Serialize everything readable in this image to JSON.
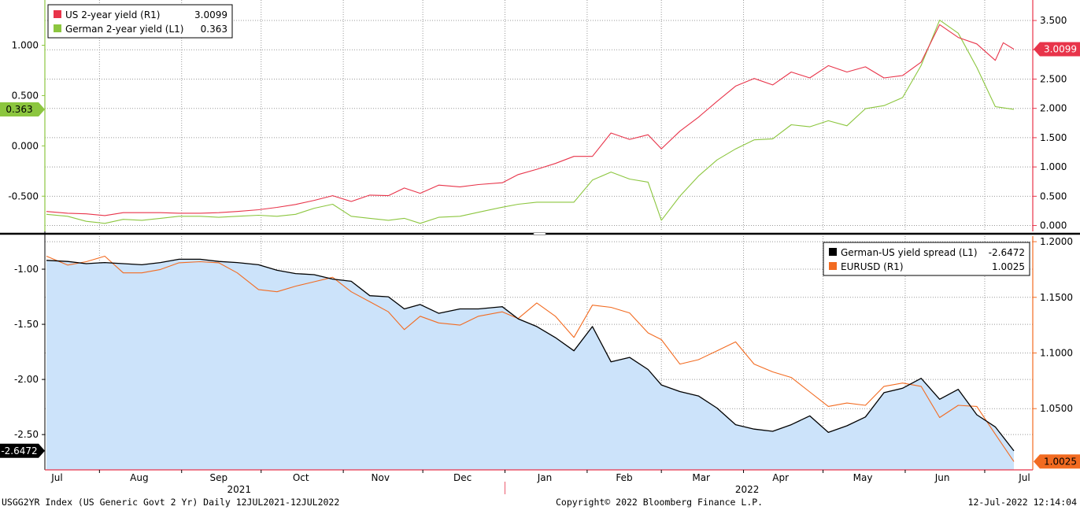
{
  "chart_data": [
    {
      "type": "line",
      "panel": "top",
      "x_axis": {
        "months": [
          "Jul",
          "Aug",
          "Sep",
          "Oct",
          "Nov",
          "Dec",
          "Jan",
          "Feb",
          "Mar",
          "Apr",
          "May",
          "Jun",
          "Jul"
        ],
        "years": [
          "2021",
          "2022"
        ],
        "range": [
          "2021-07-12",
          "2022-07-12"
        ]
      },
      "left_axis": {
        "ticks": [
          "1.000",
          "0.500",
          "0.000",
          "-0.500"
        ],
        "ylim": [
          -0.85,
          1.45
        ]
      },
      "right_axis": {
        "ticks": [
          "3.500",
          "3.000",
          "2.500",
          "2.000",
          "1.500",
          "1.000",
          "0.500",
          "0.000"
        ],
        "ylim": [
          -0.1,
          3.85
        ]
      },
      "legend_position": "top-left",
      "series": [
        {
          "name": "US 2-year yield (R1)",
          "last_value": "3.0099",
          "axis": "right",
          "color": "#e8344a",
          "points": [
            [
              "2021-07-12",
              0.24
            ],
            [
              "2021-07-20",
              0.21
            ],
            [
              "2021-07-27",
              0.2
            ],
            [
              "2021-08-03",
              0.17
            ],
            [
              "2021-08-10",
              0.22
            ],
            [
              "2021-08-17",
              0.22
            ],
            [
              "2021-08-24",
              0.22
            ],
            [
              "2021-08-31",
              0.21
            ],
            [
              "2021-09-08",
              0.21
            ],
            [
              "2021-09-15",
              0.22
            ],
            [
              "2021-09-22",
              0.24
            ],
            [
              "2021-09-30",
              0.27
            ],
            [
              "2021-10-07",
              0.31
            ],
            [
              "2021-10-14",
              0.36
            ],
            [
              "2021-10-21",
              0.43
            ],
            [
              "2021-10-28",
              0.51
            ],
            [
              "2021-11-04",
              0.41
            ],
            [
              "2021-11-11",
              0.52
            ],
            [
              "2021-11-18",
              0.51
            ],
            [
              "2021-11-24",
              0.64
            ],
            [
              "2021-11-30",
              0.55
            ],
            [
              "2021-12-07",
              0.69
            ],
            [
              "2021-12-15",
              0.66
            ],
            [
              "2021-12-22",
              0.7
            ],
            [
              "2021-12-31",
              0.73
            ],
            [
              "2022-01-06",
              0.87
            ],
            [
              "2022-01-13",
              0.96
            ],
            [
              "2022-01-20",
              1.06
            ],
            [
              "2022-01-27",
              1.18
            ],
            [
              "2022-02-03",
              1.18
            ],
            [
              "2022-02-10",
              1.58
            ],
            [
              "2022-02-17",
              1.47
            ],
            [
              "2022-02-24",
              1.55
            ],
            [
              "2022-03-01",
              1.31
            ],
            [
              "2022-03-08",
              1.61
            ],
            [
              "2022-03-15",
              1.85
            ],
            [
              "2022-03-22",
              2.12
            ],
            [
              "2022-03-29",
              2.38
            ],
            [
              "2022-04-05",
              2.51
            ],
            [
              "2022-04-12",
              2.4
            ],
            [
              "2022-04-19",
              2.62
            ],
            [
              "2022-04-26",
              2.52
            ],
            [
              "2022-05-03",
              2.73
            ],
            [
              "2022-05-10",
              2.62
            ],
            [
              "2022-05-17",
              2.71
            ],
            [
              "2022-05-24",
              2.52
            ],
            [
              "2022-05-31",
              2.56
            ],
            [
              "2022-06-07",
              2.79
            ],
            [
              "2022-06-14",
              3.43
            ],
            [
              "2022-06-21",
              3.21
            ],
            [
              "2022-06-28",
              3.1
            ],
            [
              "2022-07-05",
              2.82
            ],
            [
              "2022-07-08",
              3.12
            ],
            [
              "2022-07-12",
              3.0099
            ]
          ]
        },
        {
          "name": "German 2-year yield (L1)",
          "last_value": "0.363",
          "axis": "left",
          "color": "#8cc63f",
          "points": [
            [
              "2021-07-12",
              -0.68
            ],
            [
              "2021-07-20",
              -0.7
            ],
            [
              "2021-07-27",
              -0.75
            ],
            [
              "2021-08-03",
              -0.77
            ],
            [
              "2021-08-10",
              -0.73
            ],
            [
              "2021-08-17",
              -0.74
            ],
            [
              "2021-08-24",
              -0.72
            ],
            [
              "2021-08-31",
              -0.7
            ],
            [
              "2021-09-08",
              -0.7
            ],
            [
              "2021-09-15",
              -0.71
            ],
            [
              "2021-09-22",
              -0.7
            ],
            [
              "2021-09-30",
              -0.69
            ],
            [
              "2021-10-07",
              -0.7
            ],
            [
              "2021-10-14",
              -0.68
            ],
            [
              "2021-10-21",
              -0.62
            ],
            [
              "2021-10-28",
              -0.58
            ],
            [
              "2021-11-04",
              -0.7
            ],
            [
              "2021-11-11",
              -0.72
            ],
            [
              "2021-11-18",
              -0.74
            ],
            [
              "2021-11-24",
              -0.72
            ],
            [
              "2021-11-30",
              -0.77
            ],
            [
              "2021-12-07",
              -0.71
            ],
            [
              "2021-12-15",
              -0.7
            ],
            [
              "2021-12-22",
              -0.66
            ],
            [
              "2021-12-31",
              -0.61
            ],
            [
              "2022-01-06",
              -0.58
            ],
            [
              "2022-01-13",
              -0.56
            ],
            [
              "2022-01-20",
              -0.56
            ],
            [
              "2022-01-27",
              -0.56
            ],
            [
              "2022-02-03",
              -0.34
            ],
            [
              "2022-02-10",
              -0.26
            ],
            [
              "2022-02-17",
              -0.33
            ],
            [
              "2022-02-24",
              -0.36
            ],
            [
              "2022-03-01",
              -0.74
            ],
            [
              "2022-03-08",
              -0.5
            ],
            [
              "2022-03-15",
              -0.3
            ],
            [
              "2022-03-22",
              -0.14
            ],
            [
              "2022-03-29",
              -0.03
            ],
            [
              "2022-04-05",
              0.06
            ],
            [
              "2022-04-12",
              0.07
            ],
            [
              "2022-04-19",
              0.21
            ],
            [
              "2022-04-26",
              0.19
            ],
            [
              "2022-05-03",
              0.25
            ],
            [
              "2022-05-10",
              0.2
            ],
            [
              "2022-05-17",
              0.37
            ],
            [
              "2022-05-24",
              0.4
            ],
            [
              "2022-05-31",
              0.48
            ],
            [
              "2022-06-07",
              0.8
            ],
            [
              "2022-06-14",
              1.25
            ],
            [
              "2022-06-21",
              1.12
            ],
            [
              "2022-06-28",
              0.78
            ],
            [
              "2022-07-05",
              0.39
            ],
            [
              "2022-07-12",
              0.363
            ]
          ]
        }
      ]
    },
    {
      "type": "area",
      "panel": "bottom",
      "left_axis": {
        "ticks": [
          "-1.00",
          "-1.50",
          "-2.00",
          "-2.50"
        ],
        "ylim": [
          -2.82,
          -0.7
        ]
      },
      "right_axis": {
        "ticks": [
          "1.2000",
          "1.1500",
          "1.1000",
          "1.0500"
        ],
        "ylim": [
          0.995,
          1.205
        ]
      },
      "legend_position": "top-right",
      "series": [
        {
          "name": "German-US yield spread (L1)",
          "last_value": "-2.6472",
          "axis": "left",
          "color": "#000000",
          "fill": "#cce3fa",
          "points": [
            [
              "2021-07-12",
              -0.92
            ],
            [
              "2021-07-20",
              -0.93
            ],
            [
              "2021-07-27",
              -0.95
            ],
            [
              "2021-08-03",
              -0.94
            ],
            [
              "2021-08-10",
              -0.95
            ],
            [
              "2021-08-17",
              -0.96
            ],
            [
              "2021-08-24",
              -0.94
            ],
            [
              "2021-08-31",
              -0.91
            ],
            [
              "2021-09-08",
              -0.91
            ],
            [
              "2021-09-15",
              -0.93
            ],
            [
              "2021-09-22",
              -0.94
            ],
            [
              "2021-09-30",
              -0.96
            ],
            [
              "2021-10-07",
              -1.01
            ],
            [
              "2021-10-14",
              -1.04
            ],
            [
              "2021-10-21",
              -1.05
            ],
            [
              "2021-10-28",
              -1.09
            ],
            [
              "2021-11-04",
              -1.11
            ],
            [
              "2021-11-11",
              -1.24
            ],
            [
              "2021-11-18",
              -1.25
            ],
            [
              "2021-11-24",
              -1.36
            ],
            [
              "2021-11-30",
              -1.32
            ],
            [
              "2021-12-07",
              -1.4
            ],
            [
              "2021-12-15",
              -1.36
            ],
            [
              "2021-12-22",
              -1.36
            ],
            [
              "2021-12-31",
              -1.34
            ],
            [
              "2022-01-06",
              -1.45
            ],
            [
              "2022-01-13",
              -1.52
            ],
            [
              "2022-01-20",
              -1.62
            ],
            [
              "2022-01-27",
              -1.74
            ],
            [
              "2022-02-03",
              -1.52
            ],
            [
              "2022-02-10",
              -1.84
            ],
            [
              "2022-02-17",
              -1.8
            ],
            [
              "2022-02-24",
              -1.91
            ],
            [
              "2022-03-01",
              -2.05
            ],
            [
              "2022-03-08",
              -2.11
            ],
            [
              "2022-03-15",
              -2.15
            ],
            [
              "2022-03-22",
              -2.26
            ],
            [
              "2022-03-29",
              -2.41
            ],
            [
              "2022-04-05",
              -2.45
            ],
            [
              "2022-04-12",
              -2.47
            ],
            [
              "2022-04-19",
              -2.41
            ],
            [
              "2022-04-26",
              -2.33
            ],
            [
              "2022-05-03",
              -2.48
            ],
            [
              "2022-05-10",
              -2.42
            ],
            [
              "2022-05-17",
              -2.34
            ],
            [
              "2022-05-24",
              -2.12
            ],
            [
              "2022-05-31",
              -2.08
            ],
            [
              "2022-06-07",
              -1.99
            ],
            [
              "2022-06-14",
              -2.18
            ],
            [
              "2022-06-21",
              -2.09
            ],
            [
              "2022-06-28",
              -2.32
            ],
            [
              "2022-07-05",
              -2.43
            ],
            [
              "2022-07-12",
              -2.6472
            ]
          ]
        },
        {
          "name": "EURUSD (R1)",
          "last_value": "1.0025",
          "axis": "right",
          "color": "#f26b21",
          "points": [
            [
              "2021-07-12",
              1.187
            ],
            [
              "2021-07-20",
              1.179
            ],
            [
              "2021-07-27",
              1.182
            ],
            [
              "2021-08-03",
              1.187
            ],
            [
              "2021-08-10",
              1.172
            ],
            [
              "2021-08-17",
              1.172
            ],
            [
              "2021-08-24",
              1.175
            ],
            [
              "2021-08-31",
              1.181
            ],
            [
              "2021-09-08",
              1.182
            ],
            [
              "2021-09-15",
              1.181
            ],
            [
              "2021-09-22",
              1.172
            ],
            [
              "2021-09-30",
              1.157
            ],
            [
              "2021-10-07",
              1.155
            ],
            [
              "2021-10-14",
              1.16
            ],
            [
              "2021-10-21",
              1.164
            ],
            [
              "2021-10-28",
              1.168
            ],
            [
              "2021-11-04",
              1.155
            ],
            [
              "2021-11-11",
              1.146
            ],
            [
              "2021-11-18",
              1.137
            ],
            [
              "2021-11-24",
              1.121
            ],
            [
              "2021-11-30",
              1.133
            ],
            [
              "2021-12-07",
              1.127
            ],
            [
              "2021-12-15",
              1.125
            ],
            [
              "2021-12-22",
              1.133
            ],
            [
              "2021-12-31",
              1.137
            ],
            [
              "2022-01-06",
              1.131
            ],
            [
              "2022-01-13",
              1.145
            ],
            [
              "2022-01-20",
              1.133
            ],
            [
              "2022-01-27",
              1.114
            ],
            [
              "2022-02-03",
              1.143
            ],
            [
              "2022-02-10",
              1.141
            ],
            [
              "2022-02-17",
              1.136
            ],
            [
              "2022-02-24",
              1.118
            ],
            [
              "2022-03-01",
              1.112
            ],
            [
              "2022-03-08",
              1.09
            ],
            [
              "2022-03-15",
              1.094
            ],
            [
              "2022-03-22",
              1.102
            ],
            [
              "2022-03-29",
              1.11
            ],
            [
              "2022-04-05",
              1.09
            ],
            [
              "2022-04-12",
              1.083
            ],
            [
              "2022-04-19",
              1.078
            ],
            [
              "2022-04-26",
              1.065
            ],
            [
              "2022-05-03",
              1.052
            ],
            [
              "2022-05-10",
              1.055
            ],
            [
              "2022-05-17",
              1.053
            ],
            [
              "2022-05-24",
              1.07
            ],
            [
              "2022-05-31",
              1.073
            ],
            [
              "2022-06-07",
              1.07
            ],
            [
              "2022-06-14",
              1.042
            ],
            [
              "2022-06-21",
              1.053
            ],
            [
              "2022-06-28",
              1.052
            ],
            [
              "2022-07-05",
              1.027
            ],
            [
              "2022-07-12",
              1.0025
            ]
          ]
        }
      ]
    }
  ],
  "footer": {
    "left": "USGG2YR Index (US Generic Govt 2 Yr)  Daily 12JUL2021-12JUL2022",
    "center": "Copyright© 2022 Bloomberg Finance L.P.",
    "right": "12-Jul-2022 12:14:04"
  },
  "colors": {
    "us": "#e8344a",
    "de": "#8cc63f",
    "spread": "#000000",
    "spread_fill": "#cce3fa",
    "eurusd": "#f26b21"
  }
}
